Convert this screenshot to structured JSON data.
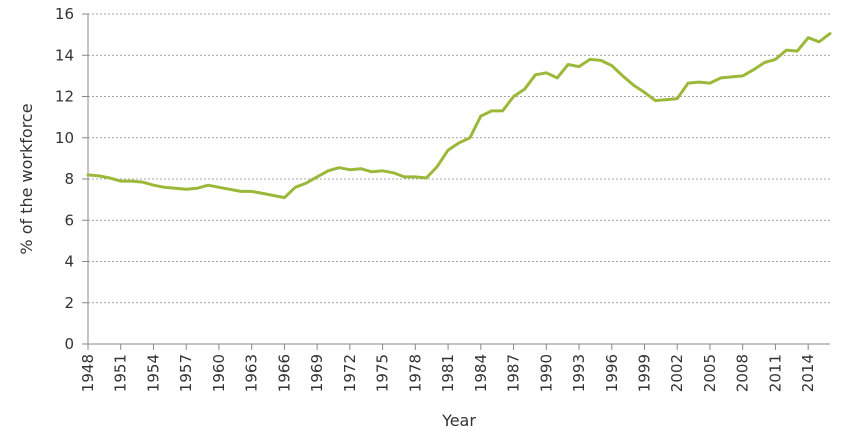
{
  "chart_data": {
    "type": "line",
    "title": "",
    "xlabel": "Year",
    "ylabel": "% of the workforce",
    "xlim": [
      1948,
      2016
    ],
    "ylim": [
      0,
      16
    ],
    "y_ticks": [
      "0",
      "2",
      "4",
      "6",
      "8",
      "10",
      "12",
      "14",
      "16"
    ],
    "x_ticks": [
      "1948",
      "1951",
      "1954",
      "1957",
      "1960",
      "1963",
      "1966",
      "1969",
      "1972",
      "1975",
      "1978",
      "1981",
      "1984",
      "1987",
      "1990",
      "1993",
      "1996",
      "1999",
      "2002",
      "2005",
      "2008",
      "2011",
      "2014"
    ],
    "grid": "horizontal dashed",
    "series": [
      {
        "color": "#9cb83a",
        "x": [
          1948,
          1949,
          1950,
          1951,
          1952,
          1953,
          1954,
          1955,
          1956,
          1957,
          1958,
          1959,
          1960,
          1961,
          1962,
          1963,
          1964,
          1965,
          1966,
          1967,
          1968,
          1969,
          1970,
          1971,
          1972,
          1973,
          1974,
          1975,
          1976,
          1977,
          1978,
          1979,
          1980,
          1981,
          1982,
          1983,
          1984,
          1985,
          1986,
          1987,
          1988,
          1989,
          1990,
          1991,
          1992,
          1993,
          1994,
          1995,
          1996,
          1997,
          1998,
          1999,
          2000,
          2001,
          2002,
          2003,
          2004,
          2005,
          2006,
          2007,
          2008,
          2009,
          2010,
          2011,
          2012,
          2013,
          2014,
          2015,
          2016
        ],
        "values": [
          8.2,
          8.15,
          8.05,
          7.9,
          7.9,
          7.85,
          7.7,
          7.6,
          7.55,
          7.5,
          7.55,
          7.7,
          7.6,
          7.5,
          7.4,
          7.4,
          7.3,
          7.2,
          7.1,
          7.6,
          7.8,
          8.1,
          8.4,
          8.55,
          8.45,
          8.5,
          8.35,
          8.4,
          8.3,
          8.1,
          8.1,
          8.05,
          8.6,
          9.4,
          9.75,
          10.0,
          11.05,
          11.3,
          11.3,
          12.0,
          12.35,
          13.05,
          13.15,
          12.9,
          13.55,
          13.45,
          13.8,
          13.75,
          13.5,
          13.0,
          12.55,
          12.2,
          11.8,
          11.85,
          11.9,
          12.65,
          12.7,
          12.65,
          12.9,
          12.95,
          13.0,
          13.3,
          13.65,
          13.8,
          14.25,
          14.2,
          14.85,
          14.65,
          15.05
        ]
      }
    ]
  }
}
